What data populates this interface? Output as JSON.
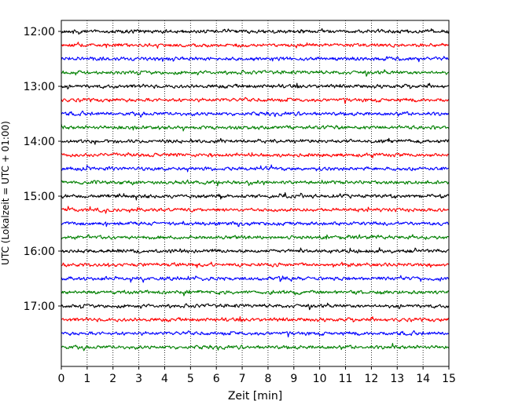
{
  "chart_data": {
    "type": "line",
    "xlabel": "Zeit  [min]",
    "ylabel": "UTC (Lokalzeit = UTC + 01:00)",
    "xlim": [
      0,
      15
    ],
    "x_ticks": [
      "0",
      "1",
      "2",
      "3",
      "4",
      "5",
      "6",
      "7",
      "8",
      "9",
      "10",
      "11",
      "12",
      "13",
      "14",
      "15"
    ],
    "y_ticks": [
      "12:00",
      "13:00",
      "14:00",
      "15:00",
      "16:00",
      "17:00"
    ],
    "ylim": [
      "11:48",
      "18:06"
    ],
    "grid": "vertical dotted at each minute",
    "trace_interval_minutes": 15,
    "trace_color_cycle": [
      "#000000",
      "#ff0000",
      "#0000ff",
      "#008000"
    ],
    "trace_start_times": [
      "12:00",
      "12:15",
      "12:30",
      "12:45",
      "13:00",
      "13:15",
      "13:30",
      "13:45",
      "14:00",
      "14:15",
      "14:30",
      "14:45",
      "15:00",
      "15:15",
      "15:30",
      "15:45",
      "16:00",
      "16:15",
      "16:30",
      "16:45",
      "17:00",
      "17:15",
      "17:30",
      "17:45"
    ]
  }
}
